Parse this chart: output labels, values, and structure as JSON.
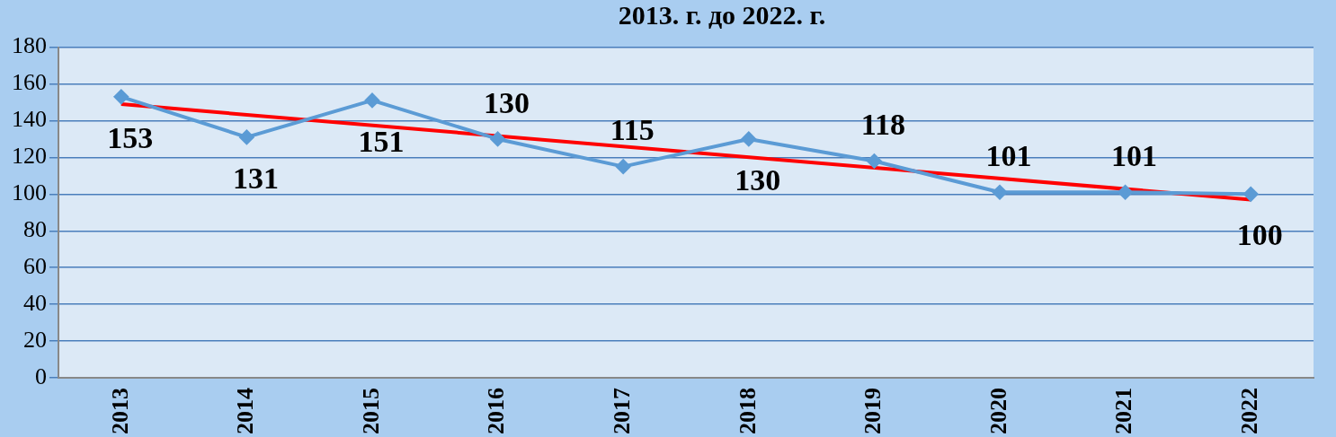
{
  "chart_data": {
    "type": "line",
    "title": "2013. г. до 2022. г.",
    "categories": [
      "2013",
      "2014",
      "2015",
      "2016",
      "2017",
      "2018",
      "2019",
      "2020",
      "2021",
      "2022"
    ],
    "series": [
      {
        "color": "#5b9bd5",
        "values": [
          153,
          131,
          151,
          130,
          115,
          130,
          118,
          101,
          101,
          100
        ],
        "marker": "diamond",
        "data_labels": true
      },
      {
        "color": "#ff0000",
        "values": [
          149,
          null,
          null,
          null,
          null,
          null,
          null,
          null,
          null,
          97
        ],
        "marker": "none"
      }
    ],
    "ylim": [
      0,
      180
    ],
    "yticks": [
      0,
      20,
      40,
      60,
      80,
      100,
      120,
      140,
      160,
      180
    ],
    "grid": "y",
    "legend": false
  }
}
